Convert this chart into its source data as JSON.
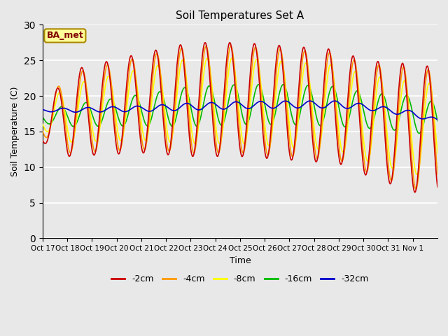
{
  "title": "Soil Temperatures Set A",
  "xlabel": "Time",
  "ylabel": "Soil Temperature (C)",
  "ylim": [
    0,
    30
  ],
  "yticks": [
    0,
    5,
    10,
    15,
    20,
    25,
    30
  ],
  "bg_color": "#e8e8e8",
  "legend_label": "BA_met",
  "legend_bg": "#ffff99",
  "legend_border": "#aa8800",
  "series_colors": {
    "-2cm": "#cc0000",
    "-4cm": "#ff9900",
    "-8cm": "#ffff00",
    "-16cm": "#00bb00",
    "-32cm": "#0000cc"
  },
  "xtick_labels": [
    "Oct 17",
    "Oct 18",
    "Oct 19",
    "Oct 20",
    "Oct 21",
    "Oct 22",
    "Oct 23",
    "Oct 24",
    "Oct 25",
    "Oct 26",
    "Oct 27",
    "Oct 28",
    "Oct 29",
    "Oct 30",
    "Oct 31",
    "Nov 1"
  ],
  "n_days": 16,
  "line_width": 1.2
}
